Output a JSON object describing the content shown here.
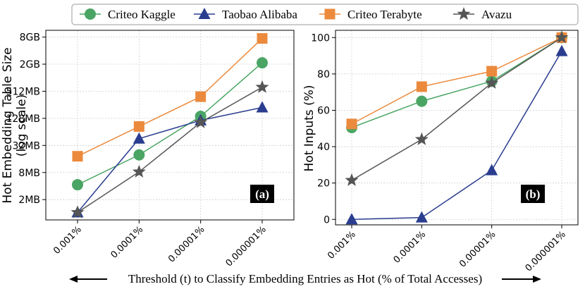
{
  "legend": [
    {
      "name": "Criteo Kaggle",
      "color": "#4aa564",
      "marker": "circle"
    },
    {
      "name": "Taobao Alibaba",
      "color": "#2a3d8f",
      "marker": "triangle"
    },
    {
      "name": "Criteo Terabyte",
      "color": "#eb8a3d",
      "marker": "square"
    },
    {
      "name": "Avazu",
      "color": "#555555",
      "marker": "star"
    }
  ],
  "xlabel": "Threshold (t) to Classify Embedding Entries as Hot (% of Total Accesses)",
  "chart_data": [
    {
      "type": "line",
      "panel_label": "(a)",
      "ylabel_line1": "Hot Embedding Table Size",
      "ylabel_line2": "(log scale)",
      "yscale": "log2",
      "ylim_log2_MB": [
        -0.5,
        13.5
      ],
      "yticks": [
        {
          "label": "2MB",
          "log2_MB": 1
        },
        {
          "label": "8MB",
          "log2_MB": 3
        },
        {
          "label": "32MB",
          "log2_MB": 5
        },
        {
          "label": "128MB",
          "log2_MB": 7
        },
        {
          "label": "512MB",
          "log2_MB": 9
        },
        {
          "label": "2GB",
          "log2_MB": 11
        },
        {
          "label": "8GB",
          "log2_MB": 13
        }
      ],
      "categories": [
        "0.001%",
        "0.0001%",
        "0.00001%",
        "0.000001%"
      ],
      "series": [
        {
          "name": "Criteo Kaggle",
          "values_log2_MB": [
            2.1,
            4.3,
            7.15,
            11.1
          ]
        },
        {
          "name": "Taobao Alibaba",
          "values_log2_MB": [
            0.05,
            5.5,
            6.85,
            7.8
          ]
        },
        {
          "name": "Criteo Terabyte",
          "values_log2_MB": [
            4.2,
            6.4,
            8.6,
            12.9
          ]
        },
        {
          "name": "Avazu",
          "values_log2_MB": [
            0.05,
            3.05,
            6.7,
            9.3
          ]
        }
      ]
    },
    {
      "type": "line",
      "panel_label": "(b)",
      "ylabel": "Hot Inputs (%)",
      "ylim": [
        -3,
        104
      ],
      "yticks": [
        0,
        20,
        40,
        60,
        80,
        100
      ],
      "categories": [
        "0.001%",
        "0.0001%",
        "0.00001%",
        "0.000001%"
      ],
      "series": [
        {
          "name": "Criteo Kaggle",
          "values": [
            50.5,
            65,
            76,
            100
          ]
        },
        {
          "name": "Taobao Alibaba",
          "values": [
            0,
            1,
            27,
            92.5
          ]
        },
        {
          "name": "Criteo Terabyte",
          "values": [
            52.5,
            73,
            81.5,
            100
          ]
        },
        {
          "name": "Avazu",
          "values": [
            21.5,
            44,
            75,
            100
          ]
        }
      ]
    }
  ]
}
